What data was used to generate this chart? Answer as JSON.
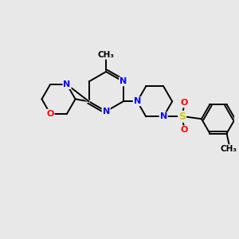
{
  "bg_color": "#e8e8e8",
  "atom_colors": {
    "N": "#0000ff",
    "O": "#ff0000",
    "S": "#cccc00",
    "C": "#000000"
  },
  "bond_color": "#000000",
  "bond_width": 1.4,
  "figsize": [
    3.0,
    3.0
  ],
  "dpi": 100,
  "xlim": [
    0,
    10
  ],
  "ylim": [
    0,
    10
  ]
}
